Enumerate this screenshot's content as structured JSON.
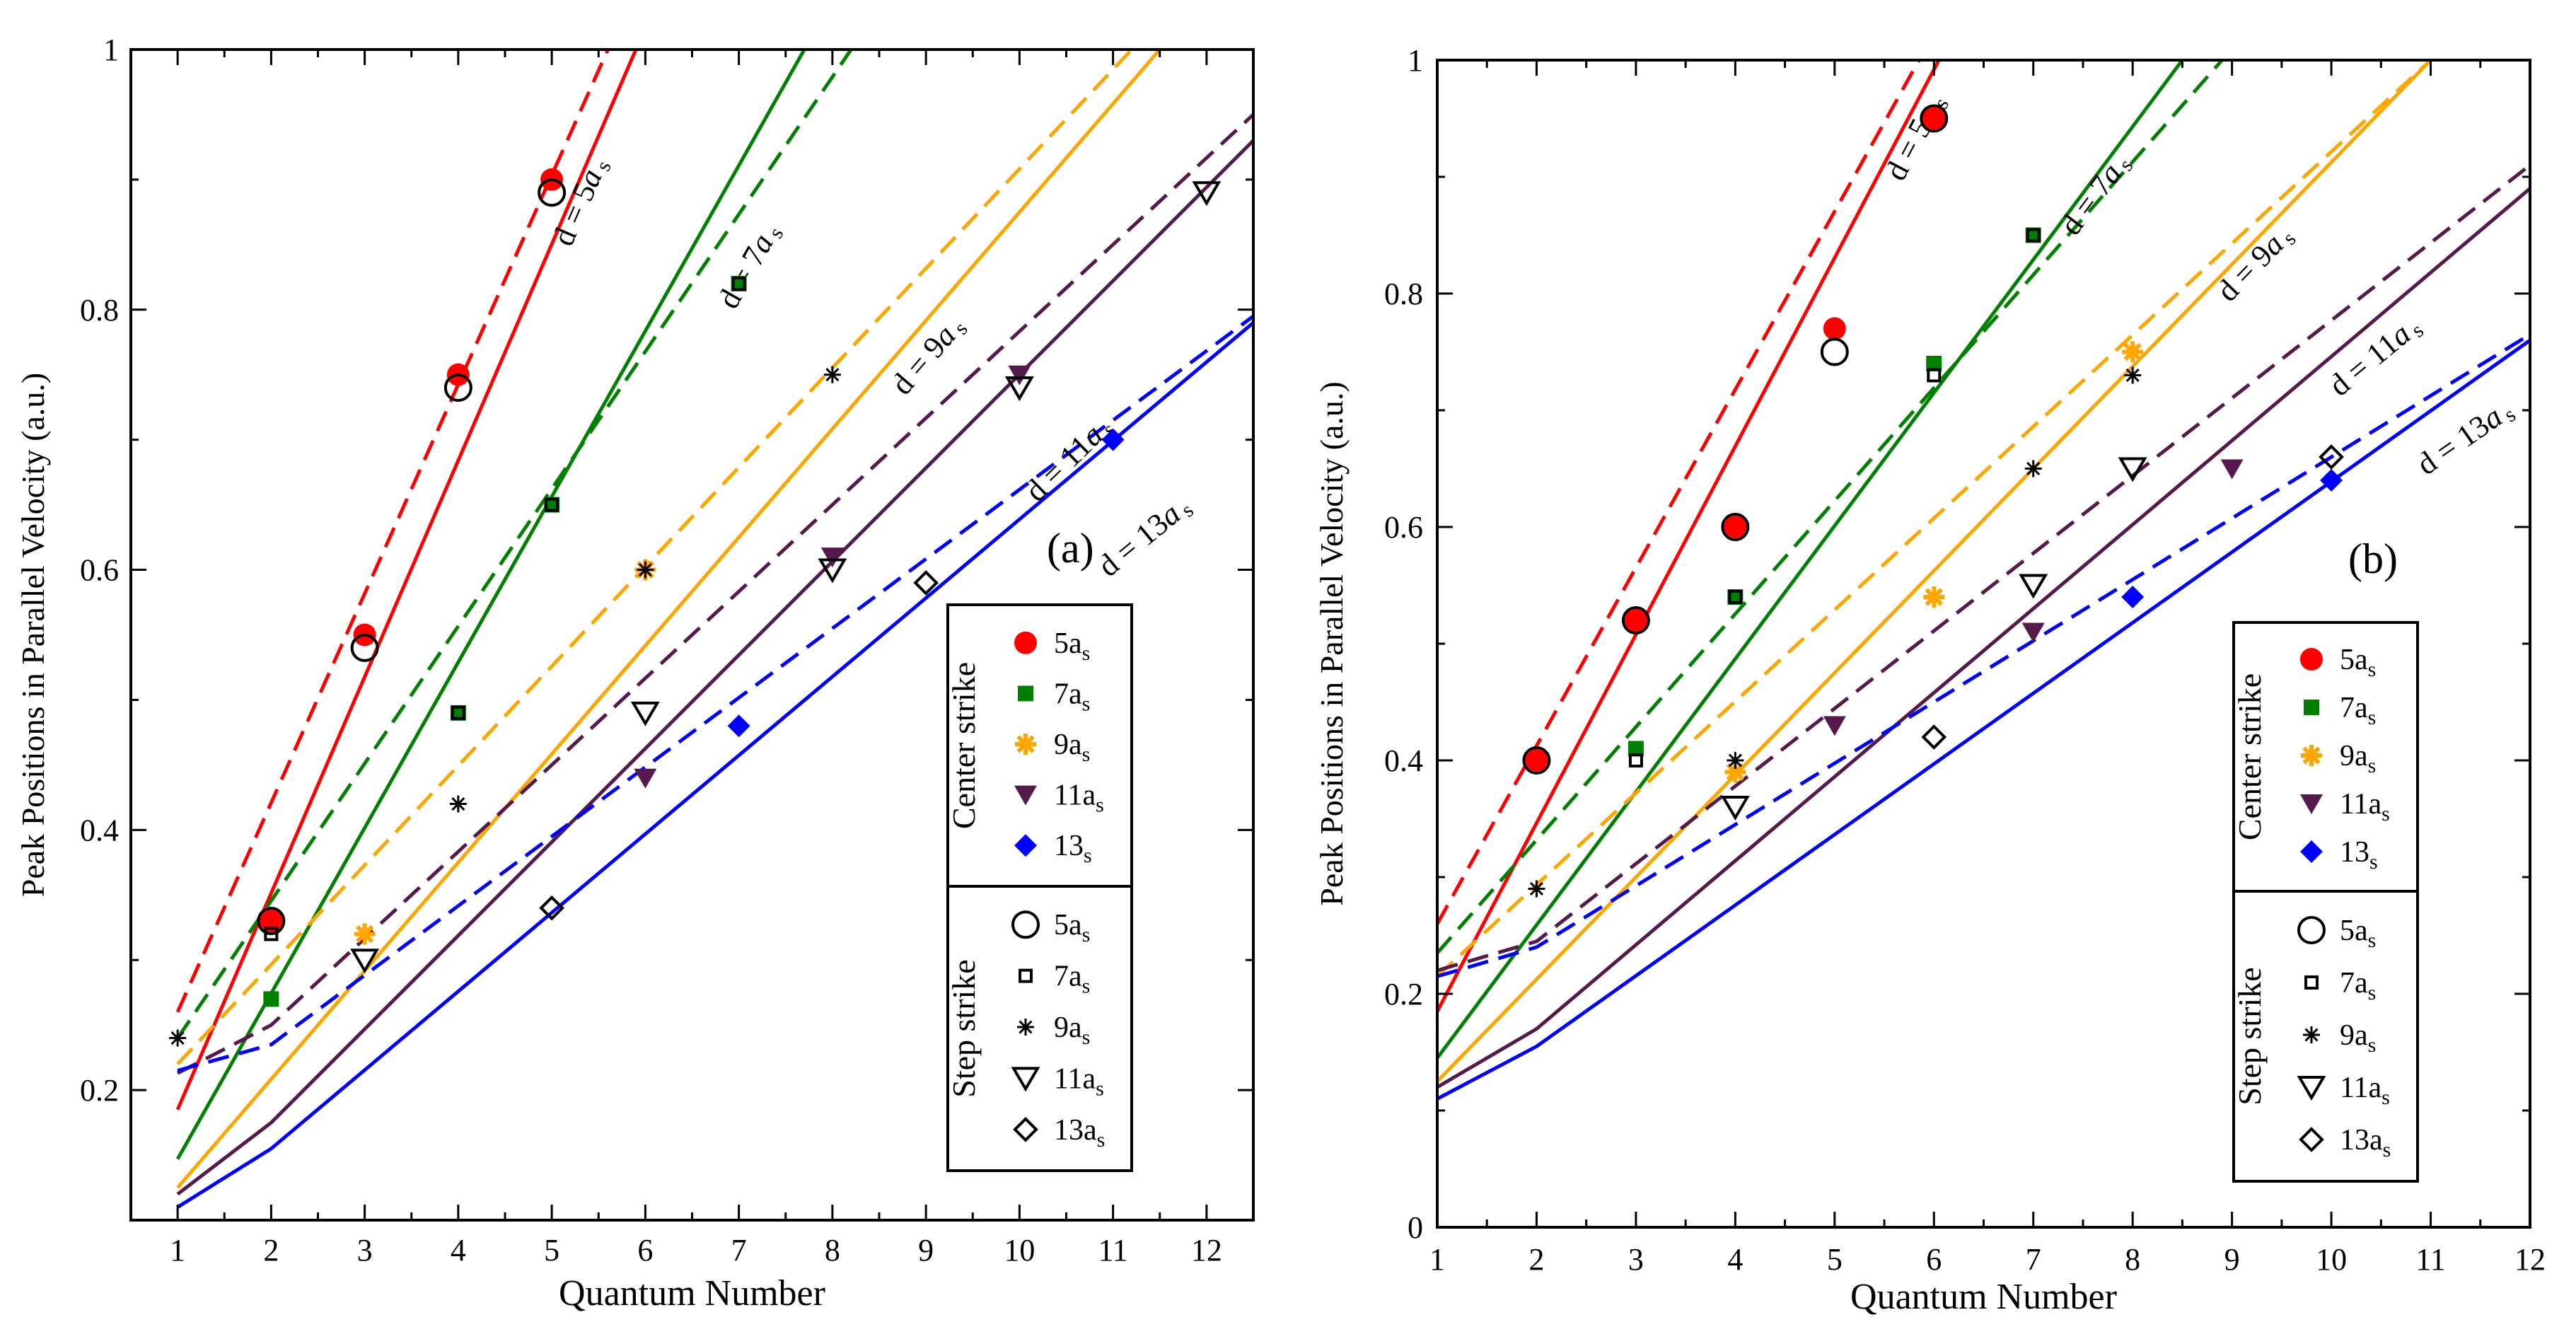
{
  "chart_data": [
    {
      "panel": "a",
      "type": "scatter+line",
      "panel_label": "(a)",
      "xlabel": "Quantum Number",
      "ylabel": "Peak Positions in Parallel Velocity (a.u.)",
      "xlim": [
        0.5,
        12.5
      ],
      "ylim": [
        0.1,
        1.0
      ],
      "xticks": [
        "1",
        "2",
        "3",
        "4",
        "5",
        "6",
        "7",
        "8",
        "9",
        "10",
        "11",
        "12"
      ],
      "yticks": [
        "0.2",
        "0.4",
        "0.6",
        "0.8",
        "1"
      ],
      "lines": [
        {
          "name": "d = 5a_s",
          "color": "#ff0000",
          "solid": [
            [
              1,
              0.185
            ],
            [
              5.9,
              1.0
            ]
          ],
          "dashed": [
            [
              1,
              0.26
            ],
            [
              5.6,
              1.0
            ]
          ]
        },
        {
          "name": "d = 7a_s",
          "color": "#008000",
          "solid": [
            [
              1,
              0.147
            ],
            [
              7.7,
              1.0
            ]
          ],
          "dashed": [
            [
              1,
              0.24
            ],
            [
              8.2,
              1.0
            ]
          ]
        },
        {
          "name": "d = 9a_s",
          "color": "#ffa500",
          "solid": [
            [
              1,
              0.125
            ],
            [
              11.5,
              1.0
            ]
          ],
          "dashed": [
            [
              1,
              0.22
            ],
            [
              11.2,
              1.0
            ]
          ]
        },
        {
          "name": "d = 11a_s",
          "color": "#551a4b",
          "solid": [
            [
              1,
              0.12
            ],
            [
              2,
              0.175
            ],
            [
              12.5,
              0.93
            ]
          ],
          "dashed": [
            [
              1,
              0.213
            ],
            [
              2,
              0.25
            ],
            [
              12.5,
              0.95
            ]
          ]
        },
        {
          "name": "d = 13a_s",
          "color": "#0000ff",
          "solid": [
            [
              1,
              0.11
            ],
            [
              2,
              0.155
            ],
            [
              12.5,
              0.79
            ]
          ],
          "dashed": [
            [
              1,
              0.215
            ],
            [
              2,
              0.235
            ],
            [
              12.5,
              0.795
            ]
          ]
        }
      ],
      "line_labels": [
        {
          "key": "5",
          "text": "d = 5a",
          "x": 5.4,
          "y": 0.88
        },
        {
          "key": "7",
          "text": "d = 7a",
          "x": 7.2,
          "y": 0.83
        },
        {
          "key": "9",
          "text": "d = 9a",
          "x": 9.1,
          "y": 0.76
        },
        {
          "key": "11",
          "text": "d = 11a",
          "x": 10.6,
          "y": 0.68
        },
        {
          "key": "13",
          "text": "d = 13a",
          "x": 11.4,
          "y": 0.62
        }
      ],
      "center_strike": {
        "5a_s": [
          [
            2,
            0.33
          ],
          [
            3,
            0.55
          ],
          [
            4,
            0.75
          ],
          [
            5,
            0.9
          ]
        ],
        "7a_s": [
          [
            2,
            0.27
          ],
          [
            4,
            0.49
          ],
          [
            5,
            0.65
          ],
          [
            7,
            0.82
          ]
        ],
        "9a_s": [
          [
            3,
            0.32
          ],
          [
            6,
            0.6
          ]
        ],
        "11a_s": [
          [
            6,
            0.44
          ],
          [
            8,
            0.61
          ],
          [
            10,
            0.75
          ]
        ],
        "13_s": [
          [
            7,
            0.48
          ],
          [
            11,
            0.7
          ]
        ]
      },
      "step_strike": {
        "5a_s": [
          [
            2,
            0.33
          ],
          [
            3,
            0.54
          ],
          [
            4,
            0.74
          ],
          [
            5,
            0.89
          ]
        ],
        "7a_s": [
          [
            2,
            0.32
          ],
          [
            4,
            0.49
          ],
          [
            5,
            0.65
          ],
          [
            7,
            0.82
          ]
        ],
        "9a_s": [
          [
            1,
            0.24
          ],
          [
            4,
            0.42
          ],
          [
            6,
            0.6
          ],
          [
            8,
            0.75
          ]
        ],
        "11a_s": [
          [
            3,
            0.3
          ],
          [
            6,
            0.49
          ],
          [
            8,
            0.6
          ],
          [
            10,
            0.74
          ],
          [
            12,
            0.89
          ]
        ],
        "13a_s": [
          [
            5,
            0.34
          ],
          [
            9,
            0.59
          ]
        ]
      },
      "legend": {
        "center_title": "Center strike",
        "step_title": "Step strike",
        "center_items": [
          {
            "base": "5a",
            "sub": "s"
          },
          {
            "base": "7a",
            "sub": "s"
          },
          {
            "base": "9a",
            "sub": "s"
          },
          {
            "base": "11a",
            "sub": "s"
          },
          {
            "base": "13",
            "sub": "s"
          }
        ],
        "step_items": [
          {
            "base": "5a",
            "sub": "s"
          },
          {
            "base": "7a",
            "sub": "s"
          },
          {
            "base": "9a",
            "sub": "s"
          },
          {
            "base": "11a",
            "sub": "s"
          },
          {
            "base": "13a",
            "sub": "s"
          }
        ]
      }
    },
    {
      "panel": "b",
      "type": "scatter+line",
      "panel_label": "(b)",
      "xlabel": "Quantum Number",
      "ylabel": "Peak Positions in Parallel Velocity (a.u.)",
      "xlim": [
        1,
        12
      ],
      "ylim": [
        0,
        1.0
      ],
      "xticks": [
        "1",
        "2",
        "3",
        "4",
        "5",
        "6",
        "7",
        "8",
        "9",
        "10",
        "11",
        "12"
      ],
      "yticks": [
        "0",
        "0.2",
        "0.4",
        "0.6",
        "0.8",
        "1"
      ],
      "lines": [
        {
          "name": "d = 5a_s",
          "color": "#ff0000",
          "solid": [
            [
              1,
              0.185
            ],
            [
              6.05,
              1.0
            ]
          ],
          "dashed": [
            [
              1,
              0.26
            ],
            [
              5.85,
              1.0
            ]
          ]
        },
        {
          "name": "d = 7a_s",
          "color": "#008000",
          "solid": [
            [
              1,
              0.145
            ],
            [
              8.5,
              1.0
            ]
          ],
          "dashed": [
            [
              1,
              0.235
            ],
            [
              8.9,
              1.0
            ]
          ]
        },
        {
          "name": "d = 9a_s",
          "color": "#ffa500",
          "solid": [
            [
              1,
              0.125
            ],
            [
              11.0,
              1.0
            ]
          ],
          "dashed": [
            [
              1,
              0.215
            ],
            [
              11.0,
              1.0
            ]
          ]
        },
        {
          "name": "d = 11a_s",
          "color": "#551a4b",
          "solid": [
            [
              1,
              0.12
            ],
            [
              2,
              0.17
            ],
            [
              12,
              0.89
            ]
          ],
          "dashed": [
            [
              1,
              0.22
            ],
            [
              2,
              0.245
            ],
            [
              12,
              0.91
            ]
          ]
        },
        {
          "name": "d = 13a_s",
          "color": "#0000ff",
          "solid": [
            [
              1,
              0.11
            ],
            [
              2,
              0.155
            ],
            [
              12,
              0.76
            ]
          ],
          "dashed": [
            [
              1,
              0.215
            ],
            [
              2,
              0.24
            ],
            [
              12,
              0.765
            ]
          ]
        }
      ],
      "line_labels": [
        {
          "key": "5",
          "text": "d = 5a",
          "x": 5.9,
          "y": 0.93
        },
        {
          "key": "7",
          "text": "d = 7a",
          "x": 7.7,
          "y": 0.88
        },
        {
          "key": "9",
          "text": "d = 9a",
          "x": 9.3,
          "y": 0.82
        },
        {
          "key": "11",
          "text": "d = 11a",
          "x": 10.5,
          "y": 0.74
        },
        {
          "key": "13",
          "text": "d = 13a",
          "x": 11.4,
          "y": 0.67
        }
      ],
      "center_strike": {
        "5a_s": [
          [
            2,
            0.4
          ],
          [
            3,
            0.52
          ],
          [
            4,
            0.6
          ],
          [
            5,
            0.77
          ],
          [
            6,
            0.95
          ]
        ],
        "7a_s": [
          [
            3,
            0.41
          ],
          [
            4,
            0.54
          ],
          [
            6,
            0.74
          ],
          [
            7,
            0.85
          ]
        ],
        "9a_s": [
          [
            4,
            0.39
          ],
          [
            6,
            0.54
          ],
          [
            8,
            0.75
          ]
        ],
        "11a_s": [
          [
            5,
            0.43
          ],
          [
            7,
            0.51
          ],
          [
            9,
            0.65
          ]
        ],
        "13_s": [
          [
            8,
            0.54
          ],
          [
            10,
            0.64
          ]
        ]
      },
      "step_strike": {
        "5a_s": [
          [
            2,
            0.4
          ],
          [
            3,
            0.52
          ],
          [
            4,
            0.6
          ],
          [
            5,
            0.75
          ],
          [
            6,
            0.95
          ]
        ],
        "7a_s": [
          [
            3,
            0.4
          ],
          [
            4,
            0.54
          ],
          [
            6,
            0.73
          ],
          [
            7,
            0.85
          ]
        ],
        "9a_s": [
          [
            2,
            0.29
          ],
          [
            4,
            0.4
          ],
          [
            7,
            0.65
          ],
          [
            8,
            0.73
          ]
        ],
        "11a_s": [
          [
            4,
            0.36
          ],
          [
            7,
            0.55
          ],
          [
            8,
            0.65
          ]
        ],
        "13a_s": [
          [
            6,
            0.42
          ],
          [
            10,
            0.66
          ]
        ]
      },
      "legend": {
        "center_title": "Center strike",
        "step_title": "Step strike",
        "center_items": [
          {
            "base": "5a",
            "sub": "s"
          },
          {
            "base": "7a",
            "sub": "s"
          },
          {
            "base": "9a",
            "sub": "s"
          },
          {
            "base": "11a",
            "sub": "s"
          },
          {
            "base": "13",
            "sub": "s"
          }
        ],
        "step_items": [
          {
            "base": "5a",
            "sub": "s"
          },
          {
            "base": "7a",
            "sub": "s"
          },
          {
            "base": "9a",
            "sub": "s"
          },
          {
            "base": "11a",
            "sub": "s"
          },
          {
            "base": "13a",
            "sub": "s"
          }
        ]
      }
    }
  ]
}
